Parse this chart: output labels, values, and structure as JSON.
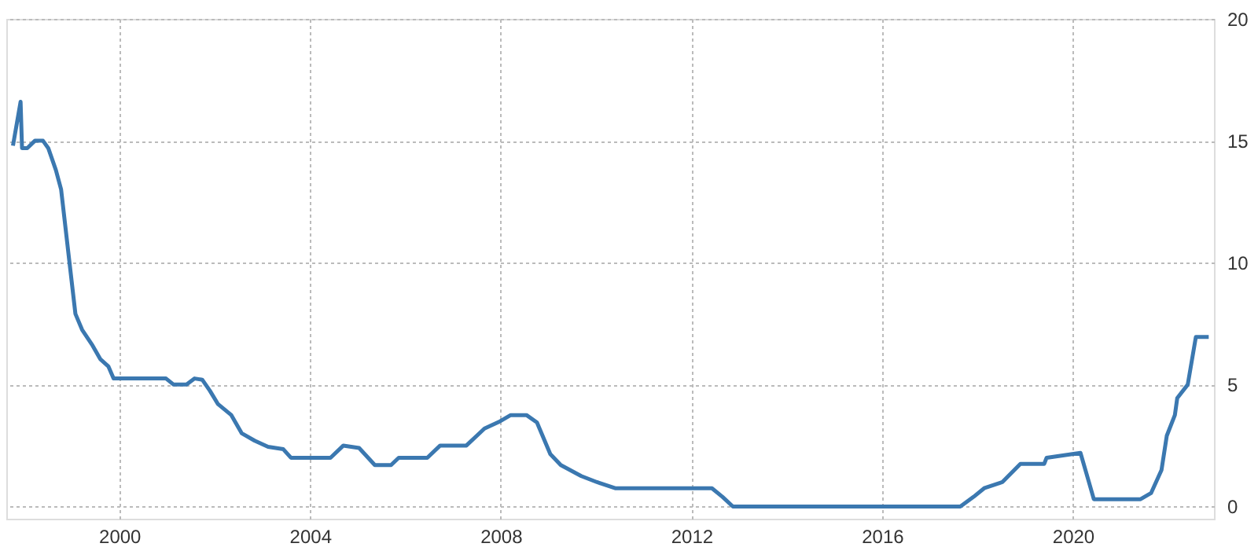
{
  "chart_data": {
    "type": "line",
    "x": [
      1997.77,
      1997.93,
      1997.96,
      1998.07,
      1998.23,
      1998.4,
      1998.51,
      1998.67,
      1998.78,
      1998.95,
      1999.08,
      1999.22,
      1999.44,
      1999.6,
      1999.77,
      1999.88,
      2000.98,
      2001.14,
      2001.41,
      2001.58,
      2001.74,
      2001.9,
      2002.07,
      2002.35,
      2002.57,
      2002.84,
      2003.12,
      2003.44,
      2003.6,
      2004.43,
      2004.7,
      2005.03,
      2005.36,
      2005.7,
      2005.86,
      2006.46,
      2006.73,
      2007.28,
      2007.66,
      2007.99,
      2008.21,
      2008.54,
      2008.76,
      2009.04,
      2009.26,
      2009.69,
      2010.02,
      2010.4,
      2012.43,
      2012.65,
      2012.87,
      2017.64,
      2017.92,
      2018.14,
      2018.52,
      2018.9,
      2019.4,
      2019.45,
      2020.16,
      2020.33,
      2020.44,
      2021.42,
      2021.64,
      2021.86,
      2021.97,
      2022.14,
      2022.19,
      2022.41,
      2022.58,
      2022.85
    ],
    "series": [
      {
        "color": "#3b78b0",
        "values": [
          14.8,
          16.6,
          14.7,
          14.7,
          15.0,
          15.0,
          14.7,
          13.8,
          13.0,
          10.1,
          7.9,
          7.25,
          6.6,
          6.05,
          5.75,
          5.25,
          5.25,
          5.0,
          5.0,
          5.25,
          5.2,
          4.75,
          4.2,
          3.75,
          3.0,
          2.7,
          2.45,
          2.35,
          2.0,
          2.0,
          2.5,
          2.4,
          1.7,
          1.7,
          2.0,
          2.0,
          2.5,
          2.5,
          3.2,
          3.5,
          3.75,
          3.75,
          3.45,
          2.15,
          1.7,
          1.25,
          1.0,
          0.75,
          0.75,
          0.4,
          0.0,
          0.0,
          0.4,
          0.75,
          1.0,
          1.75,
          1.75,
          2.0,
          2.2,
          1.05,
          0.3,
          0.3,
          0.55,
          1.5,
          2.9,
          3.75,
          4.45,
          5.0,
          6.95,
          6.95
        ]
      }
    ],
    "xlim": [
      1997.63,
      2022.96
    ],
    "xticks": [
      2000,
      2004,
      2008,
      2012,
      2016,
      2020
    ],
    "ylim": [
      -0.5,
      20
    ],
    "yticks": [
      0,
      5,
      10,
      15,
      20
    ],
    "grid": true
  }
}
